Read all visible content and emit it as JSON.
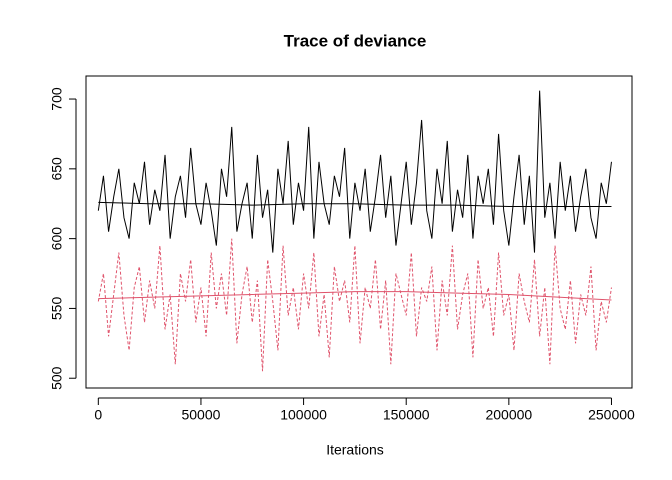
{
  "chart_data": {
    "type": "line",
    "title": "Trace of deviance",
    "x_label": "Iterations",
    "x": [
      0,
      2500,
      5000,
      7500,
      10000,
      12500,
      15000,
      17500,
      20000,
      22500,
      25000,
      27500,
      30000,
      32500,
      35000,
      37500,
      40000,
      42500,
      45000,
      47500,
      50000,
      52500,
      55000,
      57500,
      60000,
      62500,
      65000,
      67500,
      70000,
      72500,
      75000,
      77500,
      80000,
      82500,
      85000,
      87500,
      90000,
      92500,
      95000,
      97500,
      100000,
      102500,
      105000,
      107500,
      110000,
      112500,
      115000,
      117500,
      120000,
      122500,
      125000,
      127500,
      130000,
      132500,
      135000,
      137500,
      140000,
      142500,
      145000,
      147500,
      150000,
      152500,
      155000,
      157500,
      160000,
      162500,
      165000,
      167500,
      170000,
      172500,
      175000,
      177500,
      180000,
      182500,
      185000,
      187500,
      190000,
      192500,
      195000,
      197500,
      200000,
      202500,
      205000,
      207500,
      210000,
      212500,
      215000,
      217500,
      220000,
      222500,
      225000,
      227500,
      230000,
      232500,
      235000,
      237500,
      240000,
      242500,
      245000,
      247500,
      250000
    ],
    "series": [
      {
        "color": "#000000",
        "dash": false,
        "values": [
          620,
          645,
          605,
          630,
          650,
          615,
          600,
          640,
          625,
          655,
          610,
          635,
          620,
          660,
          600,
          630,
          645,
          615,
          665,
          625,
          610,
          640,
          620,
          595,
          650,
          630,
          680,
          605,
          625,
          640,
          600,
          660,
          615,
          635,
          590,
          650,
          625,
          670,
          610,
          640,
          620,
          680,
          600,
          655,
          625,
          610,
          645,
          630,
          665,
          600,
          640,
          620,
          650,
          605,
          630,
          660,
          615,
          645,
          595,
          625,
          655,
          610,
          640,
          685,
          620,
          600,
          650,
          625,
          670,
          605,
          635,
          615,
          660,
          600,
          645,
          625,
          650,
          610,
          675,
          620,
          595,
          630,
          660,
          610,
          645,
          590,
          706,
          615,
          640,
          600,
          655,
          620,
          645,
          605,
          630,
          650,
          615,
          600,
          640,
          625,
          655
        ]
      },
      {
        "color": "#DF536B",
        "dash": true,
        "values": [
          555,
          575,
          530,
          560,
          590,
          545,
          520,
          565,
          580,
          540,
          570,
          550,
          595,
          535,
          560,
          510,
          575,
          555,
          585,
          540,
          565,
          530,
          590,
          550,
          575,
          545,
          600,
          525,
          560,
          580,
          540,
          570,
          505,
          585,
          555,
          520,
          595,
          545,
          565,
          535,
          575,
          550,
          590,
          530,
          560,
          515,
          580,
          555,
          570,
          540,
          595,
          525,
          565,
          550,
          585,
          535,
          570,
          510,
          575,
          560,
          545,
          590,
          530,
          565,
          555,
          580,
          520,
          570,
          545,
          595,
          535,
          560,
          575,
          515,
          585,
          550,
          565,
          530,
          590,
          545,
          560,
          520,
          575,
          555,
          540,
          585,
          530,
          565,
          510,
          595,
          550,
          535,
          570,
          525,
          560,
          545,
          580,
          520,
          555,
          540,
          565
        ]
      },
      {
        "color": "#000000",
        "dash": false,
        "x": [
          0,
          25000,
          50000,
          75000,
          100000,
          125000,
          150000,
          175000,
          200000,
          225000,
          250000
        ],
        "values": [
          626,
          625,
          625,
          624,
          625,
          625,
          624,
          624,
          623,
          623,
          623
        ]
      },
      {
        "color": "#DF536B",
        "dash": false,
        "x": [
          0,
          25000,
          50000,
          75000,
          100000,
          125000,
          150000,
          175000,
          200000,
          225000,
          250000
        ],
        "values": [
          557,
          558,
          559,
          560,
          561,
          562,
          562,
          561,
          560,
          558,
          556
        ]
      }
    ],
    "xlim": [
      -6000,
      260000
    ],
    "ylim": [
      493,
      716.5
    ],
    "xticks": [
      0,
      50000,
      100000,
      150000,
      200000,
      250000
    ],
    "yticks": [
      500,
      550,
      600,
      650,
      700
    ]
  }
}
